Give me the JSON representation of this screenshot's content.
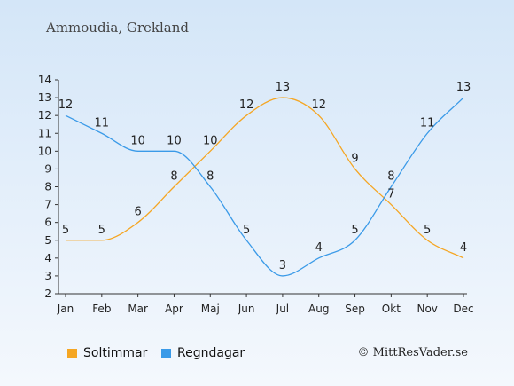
{
  "chart_data": {
    "type": "line",
    "title": "Ammoudia, Grekland",
    "categories": [
      "Jan",
      "Feb",
      "Mar",
      "Apr",
      "Maj",
      "Jun",
      "Jul",
      "Aug",
      "Sep",
      "Okt",
      "Nov",
      "Dec"
    ],
    "ylim": [
      2,
      14
    ],
    "yticks": [
      2,
      3,
      4,
      5,
      6,
      7,
      8,
      9,
      10,
      11,
      12,
      13,
      14
    ],
    "grid": false,
    "legend_position": "bottom-left",
    "series": [
      {
        "name": "Soltimmar",
        "color": "#f5a623",
        "values": [
          5,
          5,
          6,
          8,
          10,
          12,
          13,
          12,
          9,
          7,
          5,
          4
        ]
      },
      {
        "name": "Regndagar",
        "color": "#3a9ae8",
        "values": [
          12,
          11,
          10,
          10,
          8,
          5,
          3,
          4,
          5,
          8,
          11,
          13
        ]
      }
    ]
  },
  "copyright": "© MittResVader.se"
}
